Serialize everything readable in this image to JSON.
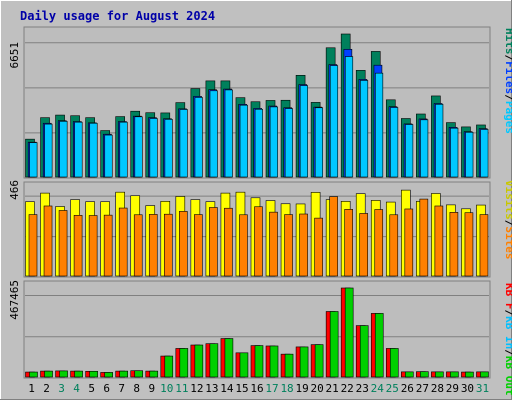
{
  "colors": {
    "background": "#c0c0c0",
    "panel": "#bdbdbd",
    "grid": "#808080",
    "title": "#0000a8",
    "hits": "#00805c",
    "files": "#0040ff",
    "pages": "#00c8ff",
    "visits": "#ffff00",
    "sites": "#ff8000",
    "kbf": "#ff0000",
    "kbin": "#00c0ff",
    "kbout": "#00d000",
    "weekend": "#00805c",
    "weekday": "#000000"
  },
  "chart_data": [
    {
      "type": "bar",
      "title": "Daily usage for August 2024",
      "ylabel_max": "6651",
      "ymax": 6651,
      "legend": [
        "Hits",
        "/",
        "Files",
        "/",
        "Pages"
      ],
      "categories": [
        "1",
        "2",
        "3",
        "4",
        "5",
        "6",
        "7",
        "8",
        "9",
        "10",
        "11",
        "12",
        "13",
        "14",
        "15",
        "16",
        "17",
        "18",
        "19",
        "20",
        "21",
        "22",
        "23",
        "24",
        "25",
        "26",
        "27",
        "28",
        "29",
        "30",
        "31"
      ],
      "weekend_days": [
        "3",
        "4",
        "10",
        "11",
        "17",
        "18",
        "24",
        "25",
        "31"
      ],
      "series": [
        {
          "name": "Hits",
          "values": [
            1760,
            2760,
            2880,
            2850,
            2760,
            2160,
            2810,
            3060,
            2990,
            2980,
            3460,
            4110,
            4470,
            4470,
            3690,
            3500,
            3560,
            3570,
            4730,
            3470,
            6010,
            6651,
            4960,
            5840,
            3590,
            2720,
            2930,
            3770,
            2530,
            2330,
            2420
          ]
        },
        {
          "name": "Files",
          "values": [
            1620,
            2500,
            2620,
            2580,
            2520,
            1990,
            2580,
            2830,
            2760,
            2710,
            3170,
            3750,
            4060,
            4090,
            3380,
            3190,
            3300,
            3220,
            4300,
            3250,
            5230,
            5940,
            4540,
            5200,
            3270,
            2470,
            2700,
            3420,
            2310,
            2110,
            2250
          ]
        },
        {
          "name": "Pages",
          "values": [
            1600,
            2460,
            2590,
            2550,
            2500,
            1950,
            2550,
            2800,
            2720,
            2680,
            3140,
            3700,
            4010,
            4050,
            3340,
            3150,
            3260,
            3180,
            4250,
            3220,
            5180,
            5600,
            4490,
            4830,
            3230,
            2440,
            2660,
            3380,
            2270,
            2080,
            2210
          ]
        }
      ]
    },
    {
      "type": "bar",
      "ylabel_max": "466",
      "ymax": 466,
      "legend": [
        "Visits",
        "/",
        "Sites"
      ],
      "categories": [
        "1",
        "2",
        "3",
        "4",
        "5",
        "6",
        "7",
        "8",
        "9",
        "10",
        "11",
        "12",
        "13",
        "14",
        "15",
        "16",
        "17",
        "18",
        "19",
        "20",
        "21",
        "22",
        "23",
        "24",
        "25",
        "26",
        "27",
        "28",
        "29",
        "30",
        "31"
      ],
      "series": [
        {
          "name": "Visits",
          "values": [
            398,
            444,
            372,
            409,
            398,
            398,
            449,
            430,
            377,
            400,
            426,
            409,
            398,
            444,
            449,
            419,
            404,
            387,
            386,
            448,
            409,
            400,
            441,
            405,
            396,
            460,
            400,
            442,
            381,
            360,
            380
          ]
        },
        {
          "name": "Sites",
          "values": [
            329,
            375,
            351,
            325,
            324,
            326,
            364,
            328,
            330,
            331,
            346,
            329,
            367,
            363,
            328,
            371,
            342,
            329,
            332,
            310,
            425,
            357,
            335,
            356,
            328,
            359,
            412,
            375,
            341,
            339,
            329
          ]
        }
      ]
    },
    {
      "type": "bar",
      "ylabel_max": "467465",
      "ymax": 467465,
      "legend": [
        "KB F",
        "/",
        "KB In",
        "/",
        "KB Out"
      ],
      "categories": [
        "1",
        "2",
        "3",
        "4",
        "5",
        "6",
        "7",
        "8",
        "9",
        "10",
        "11",
        "12",
        "13",
        "14",
        "15",
        "16",
        "17",
        "18",
        "19",
        "20",
        "21",
        "22",
        "23",
        "24",
        "25",
        "26",
        "27",
        "28",
        "29",
        "30",
        "31"
      ],
      "series": [
        {
          "name": "KB F",
          "values": [
            26000,
            31000,
            32000,
            31000,
            30000,
            24000,
            31000,
            33000,
            31000,
            110000,
            150000,
            168000,
            175000,
            202000,
            127000,
            165000,
            163000,
            120000,
            158000,
            170000,
            344000,
            467465,
            270000,
            334000,
            150000,
            27000,
            28000,
            27000,
            27000,
            26000,
            27000
          ]
        },
        {
          "name": "KB In",
          "values": [
            0,
            0,
            0,
            0,
            0,
            0,
            0,
            0,
            0,
            0,
            0,
            0,
            0,
            0,
            0,
            0,
            0,
            0,
            0,
            0,
            0,
            0,
            0,
            0,
            0,
            0,
            0,
            0,
            0,
            0,
            0
          ]
        },
        {
          "name": "KB Out",
          "values": [
            26000,
            31000,
            32000,
            31000,
            30000,
            24000,
            31000,
            33000,
            31000,
            110000,
            150000,
            168000,
            175000,
            202000,
            127000,
            165000,
            163000,
            120000,
            158000,
            170000,
            344000,
            467465,
            270000,
            334000,
            150000,
            27000,
            28000,
            27000,
            27000,
            26000,
            27000
          ]
        }
      ]
    }
  ]
}
